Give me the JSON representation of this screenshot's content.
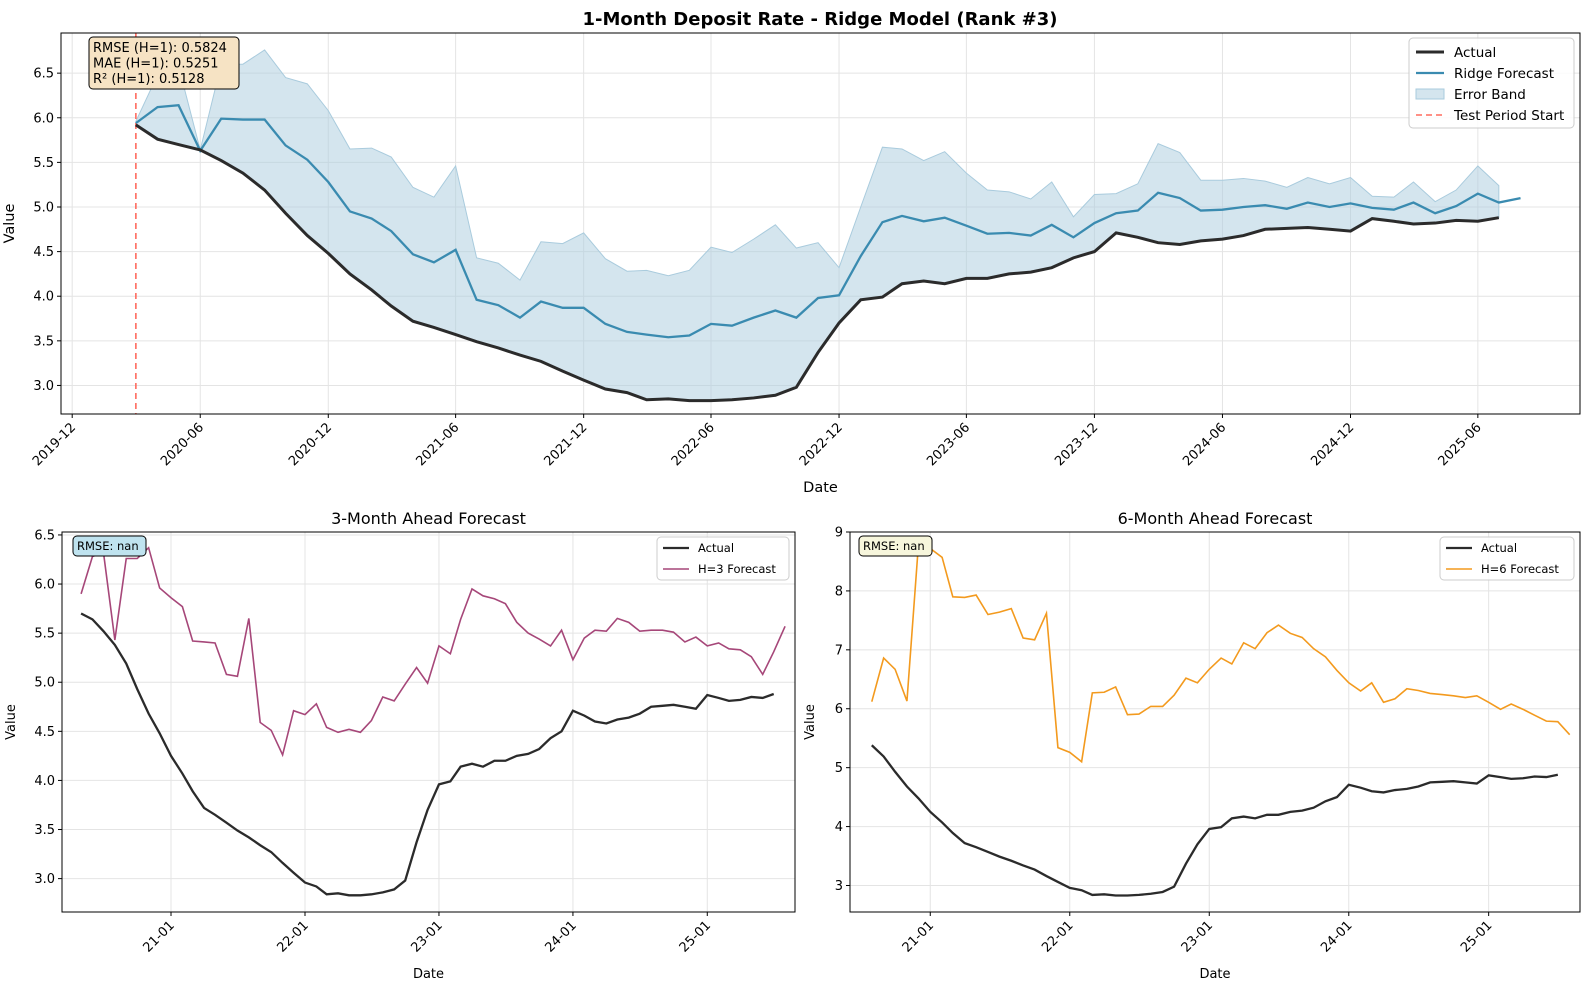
{
  "figure": {
    "suptitle": "1-Month Deposit Rate - Ridge Model (Rank #3)"
  },
  "colors": {
    "actual": "#2b2b2b",
    "ridge": "#3a8bb0",
    "band": "#a9cbdd",
    "test_line": "#ff6b5e",
    "h3": "#a64779",
    "h6": "#f39a1e",
    "metrics_box": "#f6e3c4",
    "rmse3_box": "#bfe3ef",
    "rmse6_box": "#f7f6dc"
  },
  "chart_data": [
    {
      "type": "line",
      "title": "1-Month Deposit Rate - Ridge Model (Rank #3)",
      "xlabel": "Date",
      "ylabel": "Value",
      "x_axis": "date",
      "xlim": [
        "2019-11-15",
        "2025-10-25"
      ],
      "ylim": [
        2.68,
        6.95
      ],
      "xticks": [
        "2019-12-01",
        "2020-06-01",
        "2020-12-01",
        "2021-06-01",
        "2021-12-01",
        "2022-06-01",
        "2022-12-01",
        "2023-06-01",
        "2023-12-01",
        "2024-06-01",
        "2024-12-01",
        "2025-06-01"
      ],
      "xtick_labels": [
        "2019-12",
        "2020-06",
        "2020-12",
        "2021-06",
        "2021-12",
        "2022-06",
        "2022-12",
        "2023-06",
        "2023-12",
        "2024-06",
        "2024-12",
        "2025-06"
      ],
      "yticks": [
        3.0,
        3.5,
        4.0,
        4.5,
        5.0,
        5.5,
        6.0,
        6.5
      ],
      "ytick_labels": [
        "3.0",
        "3.5",
        "4.0",
        "4.5",
        "5.0",
        "5.5",
        "6.0",
        "6.5"
      ],
      "grid": true,
      "legend_position": "top-right",
      "x_start": "2020-03-01",
      "series": [
        {
          "name": "Actual",
          "values": [
            5.92,
            5.76,
            5.7,
            5.64,
            5.52,
            5.38,
            5.19,
            4.93,
            4.68,
            4.48,
            4.25,
            4.07,
            3.89,
            3.72,
            3.65,
            3.57,
            3.49,
            3.42,
            3.34,
            3.27,
            3.16,
            3.06,
            2.96,
            2.92,
            2.84,
            2.85,
            2.83,
            2.83,
            2.84,
            2.86,
            2.89,
            2.98,
            3.37,
            3.7,
            3.96,
            3.99,
            4.14,
            4.17,
            4.14,
            4.2,
            4.2,
            4.25,
            4.27,
            4.32,
            4.43,
            4.5,
            4.71,
            4.66,
            4.6,
            4.58,
            4.62,
            4.64,
            4.68,
            4.75,
            4.76,
            4.77,
            4.75,
            4.73,
            4.87,
            4.84,
            4.81,
            4.82,
            4.85,
            4.84,
            4.88
          ]
        },
        {
          "name": "Ridge Forecast",
          "values": [
            5.94,
            6.12,
            6.14,
            5.63,
            5.99,
            5.98,
            5.98,
            5.69,
            5.53,
            5.28,
            4.95,
            4.87,
            4.73,
            4.47,
            4.38,
            4.52,
            3.96,
            3.9,
            3.76,
            3.94,
            3.87,
            3.87,
            3.69,
            3.6,
            3.57,
            3.54,
            3.56,
            3.69,
            3.67,
            3.76,
            3.84,
            3.76,
            3.98,
            4.01,
            4.45,
            4.83,
            4.9,
            4.84,
            4.88,
            4.79,
            4.7,
            4.71,
            4.68,
            4.8,
            4.66,
            4.82,
            4.93,
            4.96,
            5.16,
            5.1,
            4.96,
            4.97,
            5.0,
            5.02,
            4.98,
            5.05,
            5.0,
            5.04,
            4.99,
            4.97,
            5.05,
            4.93,
            5.01,
            5.15,
            5.05,
            5.1
          ]
        },
        {
          "name": "Error Band",
          "values": [
            5.96,
            6.48,
            6.58,
            5.64,
            6.6,
            6.6,
            6.76,
            6.45,
            6.38,
            6.08,
            5.65,
            5.66,
            5.56,
            5.22,
            5.11,
            5.46,
            4.43,
            4.37,
            4.18,
            4.61,
            4.59,
            4.71,
            4.42,
            4.28,
            4.29,
            4.23,
            4.29,
            4.55,
            4.49,
            4.64,
            4.8,
            4.54,
            4.6,
            4.32,
            5.0,
            5.67,
            5.65,
            5.52,
            5.62,
            5.38,
            5.19,
            5.17,
            5.09,
            5.28,
            4.89,
            5.14,
            5.15,
            5.26,
            5.71,
            5.61,
            5.3,
            5.3,
            5.32,
            5.29,
            5.22,
            5.33,
            5.26,
            5.33,
            5.12,
            5.11,
            5.28,
            5.06,
            5.19,
            5.46,
            5.24
          ]
        },
        {
          "name": "Test Period Start",
          "x": "2020-03-01"
        }
      ],
      "annotation": [
        "RMSE (H=1): 0.5824",
        "MAE (H=1): 0.5251",
        "R² (H=1): 0.5128"
      ]
    },
    {
      "type": "line",
      "title": "3-Month Ahead Forecast",
      "xlabel": "Date",
      "ylabel": "Value",
      "x_axis": "date",
      "xlim": [
        "2020-03-10",
        "2025-08-28"
      ],
      "ylim": [
        2.66,
        6.53
      ],
      "xticks": [
        "2021-01-01",
        "2022-01-01",
        "2023-01-01",
        "2024-01-01",
        "2025-01-01"
      ],
      "xtick_labels": [
        "21-01",
        "22-01",
        "23-01",
        "24-01",
        "25-01"
      ],
      "yticks": [
        3.0,
        3.5,
        4.0,
        4.5,
        5.0,
        5.5,
        6.0,
        6.5
      ],
      "ytick_labels": [
        "3.0",
        "3.5",
        "4.0",
        "4.5",
        "5.0",
        "5.5",
        "6.0",
        "6.5"
      ],
      "grid": true,
      "legend_position": "top-right",
      "series": [
        {
          "name": "Actual",
          "x_start": "2020-05-01",
          "values": [
            5.7,
            5.64,
            5.52,
            5.38,
            5.19,
            4.93,
            4.68,
            4.48,
            4.25,
            4.07,
            3.89,
            3.72,
            3.65,
            3.57,
            3.49,
            3.42,
            3.34,
            3.27,
            3.16,
            3.06,
            2.96,
            2.92,
            2.84,
            2.85,
            2.83,
            2.83,
            2.84,
            2.86,
            2.89,
            2.98,
            3.37,
            3.7,
            3.96,
            3.99,
            4.14,
            4.17,
            4.14,
            4.2,
            4.2,
            4.25,
            4.27,
            4.32,
            4.43,
            4.5,
            4.71,
            4.66,
            4.6,
            4.58,
            4.62,
            4.64,
            4.68,
            4.75,
            4.76,
            4.77,
            4.75,
            4.73,
            4.87,
            4.84,
            4.81,
            4.82,
            4.85,
            4.84,
            4.88
          ]
        },
        {
          "name": "H=3 Forecast",
          "x_start": "2020-05-01",
          "values": [
            5.9,
            6.28,
            6.32,
            5.43,
            6.26,
            6.26,
            6.37,
            5.96,
            5.86,
            5.77,
            5.42,
            5.41,
            5.4,
            5.08,
            5.06,
            5.65,
            4.59,
            4.51,
            4.26,
            4.71,
            4.67,
            4.78,
            4.54,
            4.49,
            4.52,
            4.49,
            4.61,
            4.85,
            4.81,
            4.98,
            5.15,
            4.99,
            5.37,
            5.29,
            5.64,
            5.95,
            5.88,
            5.85,
            5.8,
            5.61,
            5.5,
            5.44,
            5.37,
            5.53,
            5.23,
            5.45,
            5.53,
            5.52,
            5.65,
            5.61,
            5.52,
            5.53,
            5.53,
            5.51,
            5.41,
            5.46,
            5.37,
            5.4,
            5.34,
            5.33,
            5.26,
            5.08,
            5.31,
            5.57
          ]
        }
      ],
      "annotation": "RMSE: nan"
    },
    {
      "type": "line",
      "title": "6-Month Ahead Forecast",
      "xlabel": "Date",
      "ylabel": "Value",
      "x_axis": "date",
      "xlim": [
        "2020-06-05",
        "2025-08-28"
      ],
      "ylim": [
        2.55,
        9.0
      ],
      "xticks": [
        "2021-01-01",
        "2022-01-01",
        "2023-01-01",
        "2024-01-01",
        "2025-01-01"
      ],
      "xtick_labels": [
        "21-01",
        "22-01",
        "23-01",
        "24-01",
        "25-01"
      ],
      "yticks": [
        3,
        4,
        5,
        6,
        7,
        8,
        9
      ],
      "ytick_labels": [
        "3",
        "4",
        "5",
        "6",
        "7",
        "8",
        "9"
      ],
      "grid": true,
      "legend_position": "top-right",
      "series": [
        {
          "name": "Actual",
          "x_start": "2020-08-01",
          "values": [
            5.38,
            5.19,
            4.93,
            4.68,
            4.48,
            4.25,
            4.07,
            3.89,
            3.72,
            3.65,
            3.57,
            3.49,
            3.42,
            3.34,
            3.27,
            3.16,
            3.06,
            2.96,
            2.92,
            2.84,
            2.85,
            2.83,
            2.83,
            2.84,
            2.86,
            2.89,
            2.98,
            3.37,
            3.7,
            3.96,
            3.99,
            4.14,
            4.17,
            4.14,
            4.2,
            4.2,
            4.25,
            4.27,
            4.32,
            4.43,
            4.5,
            4.71,
            4.66,
            4.6,
            4.58,
            4.62,
            4.64,
            4.68,
            4.75,
            4.76,
            4.77,
            4.75,
            4.73,
            4.87,
            4.84,
            4.81,
            4.82,
            4.85,
            4.84,
            4.88
          ]
        },
        {
          "name": "H=6 Forecast",
          "x_start": "2020-08-01",
          "values": [
            6.12,
            6.86,
            6.67,
            6.13,
            8.78,
            8.72,
            8.57,
            7.9,
            7.89,
            7.93,
            7.6,
            7.64,
            7.7,
            7.2,
            7.17,
            7.62,
            5.34,
            5.26,
            5.1,
            6.27,
            6.28,
            6.37,
            5.9,
            5.91,
            6.04,
            6.04,
            6.23,
            6.52,
            6.44,
            6.67,
            6.86,
            6.76,
            7.12,
            7.02,
            7.29,
            7.42,
            7.28,
            7.21,
            7.02,
            6.88,
            6.65,
            6.44,
            6.3,
            6.44,
            6.11,
            6.17,
            6.34,
            6.31,
            6.26,
            6.24,
            6.22,
            6.19,
            6.22,
            6.11,
            5.99,
            6.08,
            5.99,
            5.89,
            5.79,
            5.78,
            5.56
          ]
        }
      ],
      "annotation": "RMSE: nan"
    }
  ]
}
